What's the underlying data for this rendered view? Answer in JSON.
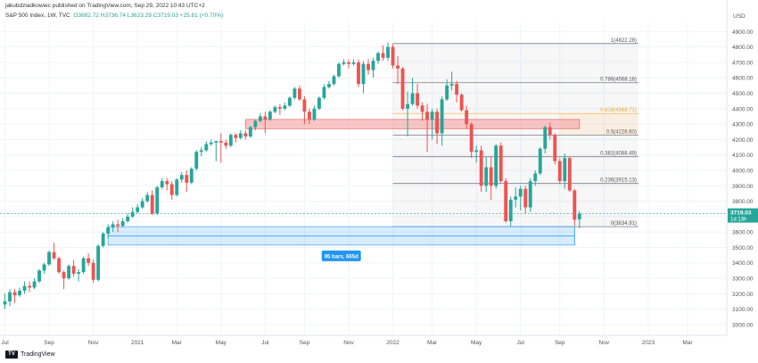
{
  "header": {
    "publisher": "jakubdziadkowiec published on TradingView.com, Sep 29, 2022 10:43 UTC+2"
  },
  "legend": {
    "symbol": "S&P 500 Index, 1W, TVC",
    "open": "O3682.72",
    "high": "H3736.74",
    "low": "L3623.29",
    "close": "C3719.03",
    "change": "+25.81 (+0.70%)"
  },
  "footer": {
    "brand": "TradingView"
  },
  "colors": {
    "up": "#26a69a",
    "down": "#ef5350",
    "fib_line": "#787b86",
    "range": "#2196f3",
    "zone": "#f7a1a1"
  },
  "chart_data": {
    "type": "candlestick",
    "currency": "USD",
    "y_ticks": [
      3000,
      3100,
      3200,
      3300,
      3400,
      3500,
      3600,
      3700,
      3800,
      3900,
      4000,
      4100,
      4200,
      4300,
      4400,
      4500,
      4600,
      4700,
      4800,
      4900
    ],
    "x_labels": [
      "Jul",
      "Sep",
      "Nov",
      "2021",
      "Mar",
      "May",
      "Jul",
      "Sep",
      "Nov",
      "2022",
      "Mar",
      "May",
      "Jul",
      "Sep",
      "Nov",
      "2023",
      "Mar"
    ],
    "x_label_weeks": [
      0,
      9,
      18,
      27,
      35,
      44,
      53,
      61,
      70,
      79,
      87,
      96,
      105,
      113,
      122,
      131,
      139
    ],
    "ylim": [
      2930,
      4960
    ],
    "xlim_weeks": [
      -1,
      147
    ],
    "current_price": {
      "value": "3719.03",
      "countdown": "1d 13h"
    },
    "fibonacci": [
      {
        "level": "1(4822.28)",
        "price": 4822.28
      },
      {
        "level": "0.786(4568.18)",
        "price": 4568.18
      },
      {
        "level": "0.618(4368.71)",
        "price": 4368.71
      },
      {
        "level": "0.5(4228.60)",
        "price": 4228.6
      },
      {
        "level": "0.382(4088.49)",
        "price": 4088.49
      },
      {
        "level": "0.236(3915.13)",
        "price": 3915.13
      },
      {
        "level": "0(3634.91)",
        "price": 3634.91
      }
    ],
    "fib_start_week": 79,
    "fib_end_week": 129,
    "resistance_zone": {
      "low": 4270,
      "high": 4330,
      "start_week": 49,
      "end_week": 117
    },
    "measure": {
      "label": "95 bars, 665d",
      "start_week": 21,
      "end_week": 116,
      "low": 3515,
      "high": 3635
    },
    "candles": [
      {
        "w": 0,
        "o": 3130,
        "h": 3200,
        "l": 3100,
        "c": 3150
      },
      {
        "w": 1,
        "o": 3150,
        "h": 3230,
        "l": 3120,
        "c": 3210
      },
      {
        "w": 2,
        "o": 3210,
        "h": 3230,
        "l": 3140,
        "c": 3190
      },
      {
        "w": 3,
        "o": 3190,
        "h": 3240,
        "l": 3180,
        "c": 3220
      },
      {
        "w": 4,
        "o": 3220,
        "h": 3280,
        "l": 3200,
        "c": 3250
      },
      {
        "w": 5,
        "o": 3250,
        "h": 3280,
        "l": 3210,
        "c": 3240
      },
      {
        "w": 6,
        "o": 3240,
        "h": 3300,
        "l": 3230,
        "c": 3280
      },
      {
        "w": 7,
        "o": 3280,
        "h": 3360,
        "l": 3270,
        "c": 3350
      },
      {
        "w": 8,
        "o": 3350,
        "h": 3400,
        "l": 3330,
        "c": 3390
      },
      {
        "w": 9,
        "o": 3390,
        "h": 3480,
        "l": 3380,
        "c": 3470
      },
      {
        "w": 10,
        "o": 3470,
        "h": 3530,
        "l": 3420,
        "c": 3430
      },
      {
        "w": 11,
        "o": 3430,
        "h": 3440,
        "l": 3330,
        "c": 3340
      },
      {
        "w": 12,
        "o": 3340,
        "h": 3350,
        "l": 3230,
        "c": 3300
      },
      {
        "w": 13,
        "o": 3300,
        "h": 3390,
        "l": 3290,
        "c": 3380
      },
      {
        "w": 14,
        "o": 3380,
        "h": 3420,
        "l": 3310,
        "c": 3330
      },
      {
        "w": 15,
        "o": 3330,
        "h": 3360,
        "l": 3280,
        "c": 3340
      },
      {
        "w": 16,
        "o": 3340,
        "h": 3440,
        "l": 3330,
        "c": 3430
      },
      {
        "w": 17,
        "o": 3430,
        "h": 3460,
        "l": 3380,
        "c": 3400
      },
      {
        "w": 18,
        "o": 3400,
        "h": 3420,
        "l": 3270,
        "c": 3290
      },
      {
        "w": 19,
        "o": 3290,
        "h": 3520,
        "l": 3280,
        "c": 3510
      },
      {
        "w": 20,
        "o": 3510,
        "h": 3600,
        "l": 3500,
        "c": 3590
      },
      {
        "w": 21,
        "o": 3590,
        "h": 3650,
        "l": 3560,
        "c": 3630
      },
      {
        "w": 22,
        "o": 3630,
        "h": 3670,
        "l": 3600,
        "c": 3650
      },
      {
        "w": 23,
        "o": 3650,
        "h": 3680,
        "l": 3600,
        "c": 3640
      },
      {
        "w": 24,
        "o": 3640,
        "h": 3690,
        "l": 3630,
        "c": 3670
      },
      {
        "w": 25,
        "o": 3670,
        "h": 3720,
        "l": 3660,
        "c": 3700
      },
      {
        "w": 26,
        "o": 3700,
        "h": 3760,
        "l": 3690,
        "c": 3730
      },
      {
        "w": 27,
        "o": 3730,
        "h": 3780,
        "l": 3720,
        "c": 3760
      },
      {
        "w": 28,
        "o": 3760,
        "h": 3820,
        "l": 3750,
        "c": 3800
      },
      {
        "w": 29,
        "o": 3800,
        "h": 3860,
        "l": 3790,
        "c": 3840
      },
      {
        "w": 30,
        "o": 3840,
        "h": 3870,
        "l": 3710,
        "c": 3720
      },
      {
        "w": 31,
        "o": 3720,
        "h": 3900,
        "l": 3710,
        "c": 3890
      },
      {
        "w": 32,
        "o": 3890,
        "h": 3950,
        "l": 3880,
        "c": 3930
      },
      {
        "w": 33,
        "o": 3930,
        "h": 3950,
        "l": 3870,
        "c": 3910
      },
      {
        "w": 34,
        "o": 3910,
        "h": 3930,
        "l": 3810,
        "c": 3840
      },
      {
        "w": 35,
        "o": 3840,
        "h": 3950,
        "l": 3830,
        "c": 3940
      },
      {
        "w": 36,
        "o": 3940,
        "h": 3990,
        "l": 3920,
        "c": 3970
      },
      {
        "w": 37,
        "o": 3970,
        "h": 4000,
        "l": 3860,
        "c": 3920
      },
      {
        "w": 38,
        "o": 3920,
        "h": 4020,
        "l": 3910,
        "c": 4010
      },
      {
        "w": 39,
        "o": 4010,
        "h": 4130,
        "l": 4000,
        "c": 4120
      },
      {
        "w": 40,
        "o": 4120,
        "h": 4150,
        "l": 4090,
        "c": 4130
      },
      {
        "w": 41,
        "o": 4130,
        "h": 4190,
        "l": 4120,
        "c": 4170
      },
      {
        "w": 42,
        "o": 4170,
        "h": 4200,
        "l": 4160,
        "c": 4180
      },
      {
        "w": 43,
        "o": 4180,
        "h": 4190,
        "l": 4060,
        "c": 4190
      },
      {
        "w": 44,
        "o": 4190,
        "h": 4240,
        "l": 4050,
        "c": 4180
      },
      {
        "w": 45,
        "o": 4180,
        "h": 4200,
        "l": 4140,
        "c": 4160
      },
      {
        "w": 46,
        "o": 4160,
        "h": 4240,
        "l": 4150,
        "c": 4230
      },
      {
        "w": 47,
        "o": 4230,
        "h": 4240,
        "l": 4180,
        "c": 4210
      },
      {
        "w": 48,
        "o": 4210,
        "h": 4260,
        "l": 4200,
        "c": 4240
      },
      {
        "w": 49,
        "o": 4240,
        "h": 4260,
        "l": 4200,
        "c": 4220
      },
      {
        "w": 50,
        "o": 4220,
        "h": 4290,
        "l": 4210,
        "c": 4280
      },
      {
        "w": 51,
        "o": 4280,
        "h": 4330,
        "l": 4260,
        "c": 4320
      },
      {
        "w": 52,
        "o": 4320,
        "h": 4370,
        "l": 4310,
        "c": 4350
      },
      {
        "w": 53,
        "o": 4350,
        "h": 4380,
        "l": 4240,
        "c": 4330
      },
      {
        "w": 54,
        "o": 4330,
        "h": 4390,
        "l": 4320,
        "c": 4380
      },
      {
        "w": 55,
        "o": 4380,
        "h": 4420,
        "l": 4370,
        "c": 4410
      },
      {
        "w": 56,
        "o": 4410,
        "h": 4430,
        "l": 4360,
        "c": 4400
      },
      {
        "w": 57,
        "o": 4400,
        "h": 4440,
        "l": 4390,
        "c": 4420
      },
      {
        "w": 58,
        "o": 4420,
        "h": 4480,
        "l": 4410,
        "c": 4470
      },
      {
        "w": 59,
        "o": 4470,
        "h": 4540,
        "l": 4460,
        "c": 4530
      },
      {
        "w": 60,
        "o": 4530,
        "h": 4550,
        "l": 4450,
        "c": 4460
      },
      {
        "w": 61,
        "o": 4460,
        "h": 4480,
        "l": 4300,
        "c": 4380
      },
      {
        "w": 62,
        "o": 4380,
        "h": 4400,
        "l": 4300,
        "c": 4330
      },
      {
        "w": 63,
        "o": 4330,
        "h": 4420,
        "l": 4320,
        "c": 4400
      },
      {
        "w": 64,
        "o": 4400,
        "h": 4480,
        "l": 4390,
        "c": 4470
      },
      {
        "w": 65,
        "o": 4470,
        "h": 4560,
        "l": 4460,
        "c": 4540
      },
      {
        "w": 66,
        "o": 4540,
        "h": 4580,
        "l": 4530,
        "c": 4560
      },
      {
        "w": 67,
        "o": 4560,
        "h": 4620,
        "l": 4550,
        "c": 4610
      },
      {
        "w": 68,
        "o": 4610,
        "h": 4700,
        "l": 4600,
        "c": 4690
      },
      {
        "w": 69,
        "o": 4690,
        "h": 4720,
        "l": 4680,
        "c": 4700
      },
      {
        "w": 70,
        "o": 4700,
        "h": 4720,
        "l": 4660,
        "c": 4690
      },
      {
        "w": 71,
        "o": 4690,
        "h": 4720,
        "l": 4680,
        "c": 4700
      },
      {
        "w": 72,
        "o": 4700,
        "h": 4720,
        "l": 4540,
        "c": 4560
      },
      {
        "w": 73,
        "o": 4560,
        "h": 4710,
        "l": 4500,
        "c": 4690
      },
      {
        "w": 74,
        "o": 4690,
        "h": 4720,
        "l": 4620,
        "c": 4650
      },
      {
        "w": 75,
        "o": 4650,
        "h": 4730,
        "l": 4600,
        "c": 4710
      },
      {
        "w": 76,
        "o": 4710,
        "h": 4770,
        "l": 4690,
        "c": 4760
      },
      {
        "w": 77,
        "o": 4760,
        "h": 4810,
        "l": 4710,
        "c": 4730
      },
      {
        "w": 78,
        "o": 4730,
        "h": 4830,
        "l": 4710,
        "c": 4800
      },
      {
        "w": 79,
        "o": 4800,
        "h": 4820,
        "l": 4660,
        "c": 4680
      },
      {
        "w": 80,
        "o": 4680,
        "h": 4740,
        "l": 4560,
        "c": 4660
      },
      {
        "w": 81,
        "o": 4660,
        "h": 4670,
        "l": 4390,
        "c": 4400
      },
      {
        "w": 82,
        "o": 4400,
        "h": 4510,
        "l": 4220,
        "c": 4430
      },
      {
        "w": 83,
        "o": 4430,
        "h": 4600,
        "l": 4420,
        "c": 4500
      },
      {
        "w": 84,
        "o": 4500,
        "h": 4560,
        "l": 4400,
        "c": 4420
      },
      {
        "w": 85,
        "o": 4420,
        "h": 4440,
        "l": 4320,
        "c": 4380
      },
      {
        "w": 86,
        "o": 4380,
        "h": 4430,
        "l": 4120,
        "c": 4330
      },
      {
        "w": 87,
        "o": 4330,
        "h": 4400,
        "l": 4200,
        "c": 4380
      },
      {
        "w": 88,
        "o": 4380,
        "h": 4400,
        "l": 4170,
        "c": 4240
      },
      {
        "w": 89,
        "o": 4240,
        "h": 4480,
        "l": 4160,
        "c": 4460
      },
      {
        "w": 90,
        "o": 4460,
        "h": 4590,
        "l": 4450,
        "c": 4550
      },
      {
        "w": 91,
        "o": 4550,
        "h": 4640,
        "l": 4520,
        "c": 4560
      },
      {
        "w": 92,
        "o": 4560,
        "h": 4580,
        "l": 4440,
        "c": 4490
      },
      {
        "w": 93,
        "o": 4490,
        "h": 4500,
        "l": 4380,
        "c": 4390
      },
      {
        "w": 94,
        "o": 4390,
        "h": 4420,
        "l": 4270,
        "c": 4300
      },
      {
        "w": 95,
        "o": 4300,
        "h": 4310,
        "l": 4080,
        "c": 4120
      },
      {
        "w": 96,
        "o": 4120,
        "h": 4160,
        "l": 4050,
        "c": 4130
      },
      {
        "w": 97,
        "o": 4130,
        "h": 4160,
        "l": 3860,
        "c": 3900
      },
      {
        "w": 98,
        "o": 3900,
        "h": 4090,
        "l": 3860,
        "c": 4020
      },
      {
        "w": 99,
        "o": 4020,
        "h": 4090,
        "l": 3810,
        "c": 3900
      },
      {
        "w": 100,
        "o": 3900,
        "h": 4170,
        "l": 3880,
        "c": 4160
      },
      {
        "w": 101,
        "o": 4160,
        "h": 4180,
        "l": 3920,
        "c": 3930
      },
      {
        "w": 102,
        "o": 3930,
        "h": 3950,
        "l": 3660,
        "c": 3670
      },
      {
        "w": 103,
        "o": 3670,
        "h": 3830,
        "l": 3640,
        "c": 3810
      },
      {
        "w": 104,
        "o": 3810,
        "h": 3890,
        "l": 3760,
        "c": 3830
      },
      {
        "w": 105,
        "o": 3830,
        "h": 3900,
        "l": 3740,
        "c": 3880
      },
      {
        "w": 106,
        "o": 3880,
        "h": 3900,
        "l": 3720,
        "c": 3760
      },
      {
        "w": 107,
        "o": 3760,
        "h": 3950,
        "l": 3730,
        "c": 3930
      },
      {
        "w": 108,
        "o": 3930,
        "h": 4000,
        "l": 3900,
        "c": 3980
      },
      {
        "w": 109,
        "o": 3980,
        "h": 4150,
        "l": 3970,
        "c": 4140
      },
      {
        "w": 110,
        "o": 4140,
        "h": 4290,
        "l": 4110,
        "c": 4280
      },
      {
        "w": 111,
        "o": 4280,
        "h": 4310,
        "l": 4200,
        "c": 4230
      },
      {
        "w": 112,
        "o": 4230,
        "h": 4240,
        "l": 4040,
        "c": 4060
      },
      {
        "w": 113,
        "o": 4060,
        "h": 4080,
        "l": 3910,
        "c": 3930
      },
      {
        "w": 114,
        "o": 3930,
        "h": 4110,
        "l": 3880,
        "c": 4080
      },
      {
        "w": 115,
        "o": 4080,
        "h": 4090,
        "l": 3860,
        "c": 3870
      },
      {
        "w": 116,
        "o": 3870,
        "h": 3880,
        "l": 3640,
        "c": 3680
      },
      {
        "w": 117,
        "o": 3682.72,
        "h": 3736.74,
        "l": 3623.29,
        "c": 3719.03
      }
    ]
  }
}
